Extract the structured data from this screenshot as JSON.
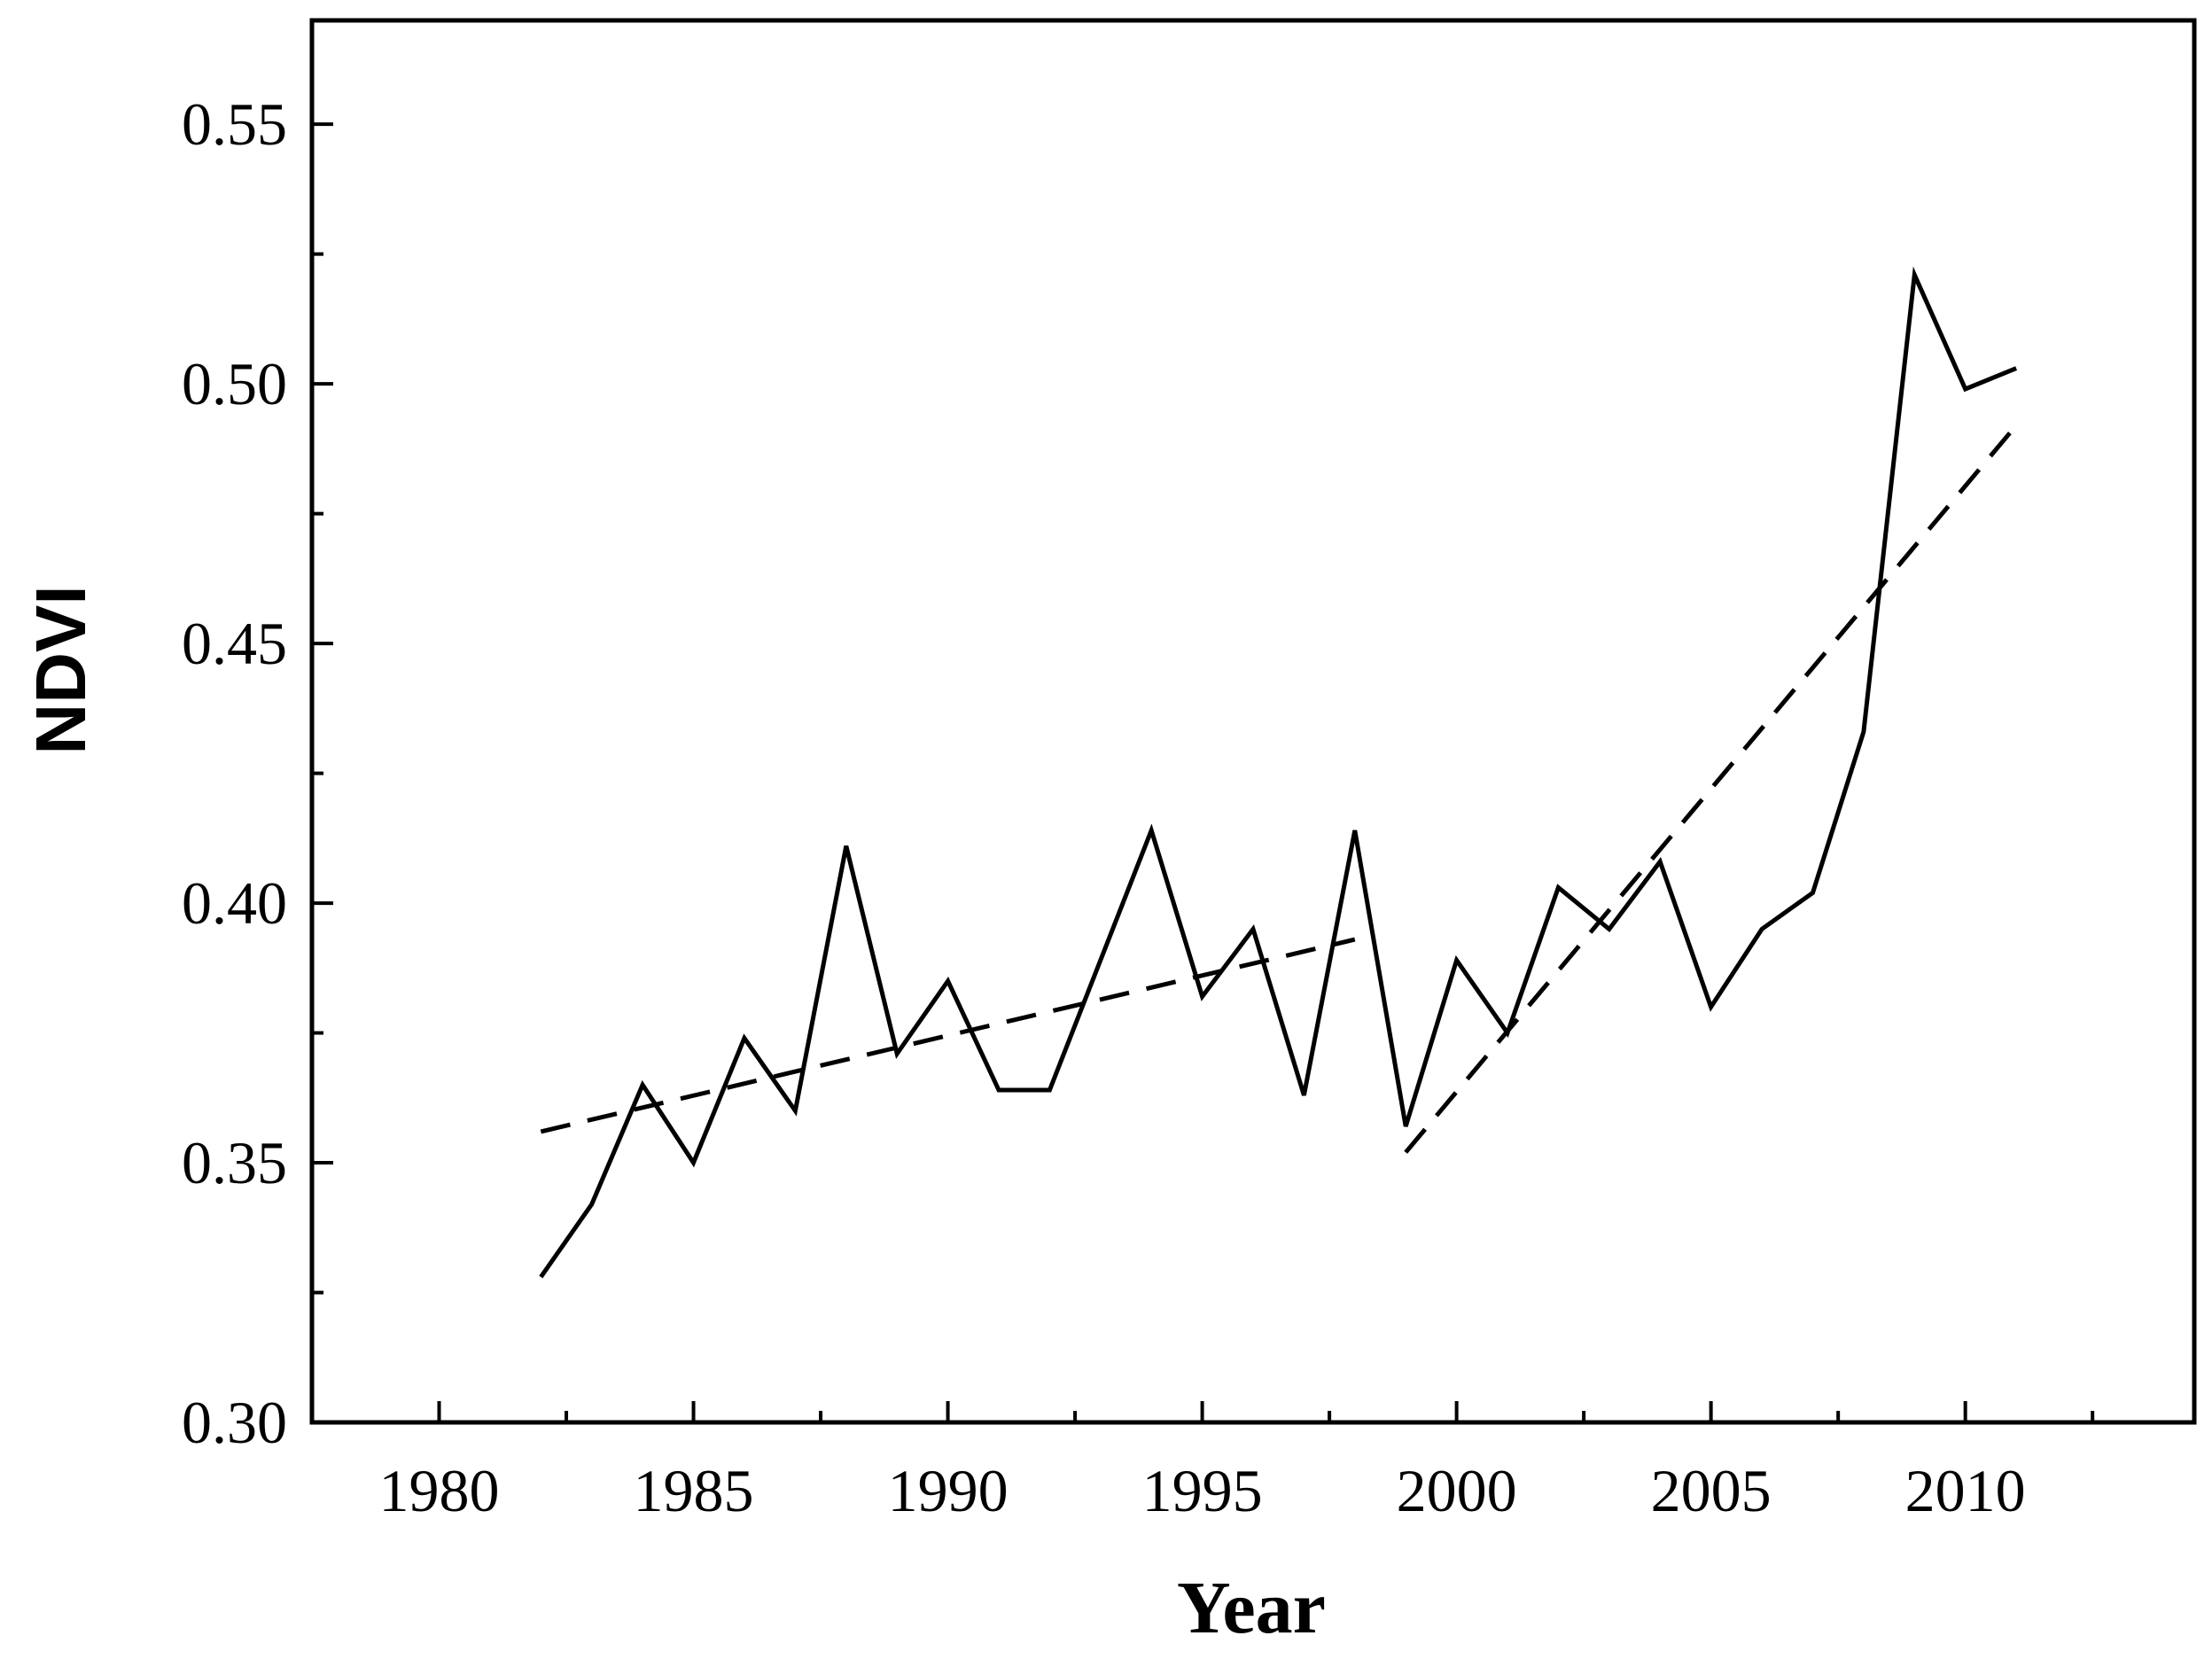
{
  "chart_data": {
    "type": "line",
    "title": "",
    "xlabel": "Year",
    "ylabel": "NDVI",
    "xlim": [
      1977.5,
      2014.5
    ],
    "ylim": [
      0.3,
      0.57
    ],
    "xticks": [
      1980,
      1985,
      1990,
      1995,
      2000,
      2005,
      2010
    ],
    "xtick_labels": [
      "1980",
      "1985",
      "1990",
      "1995",
      "2000",
      "2005",
      "2010"
    ],
    "yticks": [
      0.3,
      0.35,
      0.4,
      0.45,
      0.5,
      0.55
    ],
    "ytick_labels": [
      "0.30",
      "0.35",
      "0.40",
      "0.45",
      "0.50",
      "0.55"
    ],
    "grid": false,
    "legend": "none",
    "series": [
      {
        "style": "solid",
        "x": [
          1982,
          1983,
          1984,
          1985,
          1986,
          1987,
          1988,
          1989,
          1990,
          1991,
          1992,
          1993,
          1994,
          1995,
          1996,
          1997,
          1998,
          1999,
          2000,
          2001,
          2002,
          2003,
          2004,
          2005,
          2006,
          2007,
          2008,
          2009,
          2010,
          2011
        ],
        "y": [
          0.328,
          0.342,
          0.365,
          0.35,
          0.374,
          0.36,
          0.411,
          0.371,
          0.385,
          0.364,
          0.364,
          0.389,
          0.414,
          0.382,
          0.395,
          0.363,
          0.414,
          0.357,
          0.389,
          0.375,
          0.403,
          0.395,
          0.408,
          0.38,
          0.395,
          0.402,
          0.433,
          0.521,
          0.499,
          0.503
        ]
      },
      {
        "style": "dashed",
        "x": [
          1982,
          1998
        ],
        "y": [
          0.356,
          0.393
        ]
      },
      {
        "style": "dashed",
        "x": [
          1999,
          2011
        ],
        "y": [
          0.352,
          0.492
        ]
      }
    ]
  }
}
